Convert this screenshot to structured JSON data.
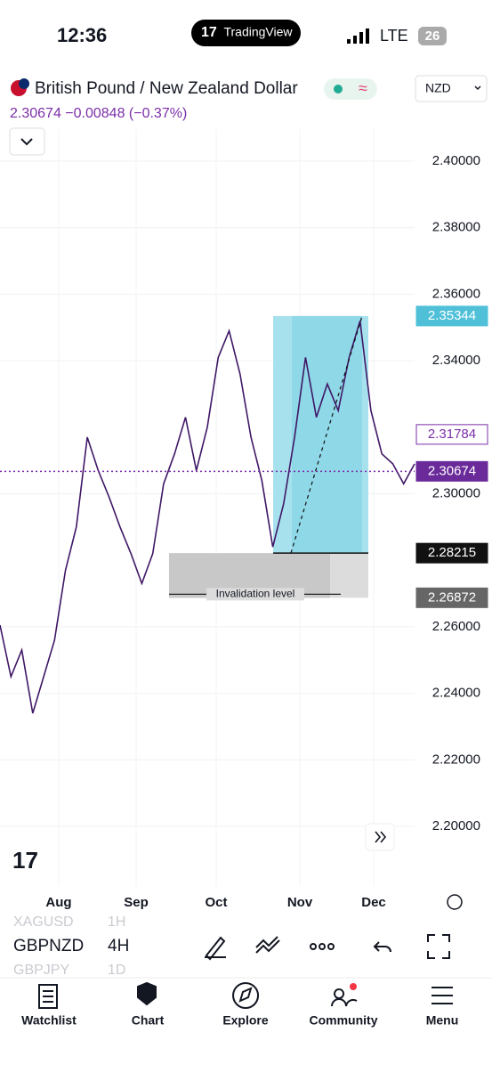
{
  "status_bar": {
    "time": "12:36",
    "app": "TradingView",
    "network": "LTE",
    "battery": "26"
  },
  "header": {
    "title": "British Pound / New Zealand Dollar",
    "currency": "NZD",
    "quote": "2.30674 −0.00848 (−0.37%)"
  },
  "chart_data": {
    "type": "line",
    "color": "#3f1766",
    "values": [
      2.2605,
      2.245,
      2.253,
      2.234,
      2.245,
      2.256,
      2.277,
      2.29,
      2.317,
      2.307,
      2.299,
      2.29,
      2.282,
      2.273,
      2.282,
      2.303,
      2.312,
      2.323,
      2.307,
      2.32,
      2.341,
      2.349,
      2.336,
      2.317,
      2.304,
      2.284,
      2.297,
      2.317,
      2.341,
      2.323,
      2.333,
      2.325,
      2.341,
      2.352,
      2.325,
      2.312,
      2.309,
      2.303,
      2.309
    ],
    "ylim": [
      2.18206,
      2.40964
    ],
    "yticks": [
      {
        "value": 2.2,
        "label": "2.20000"
      },
      {
        "value": 2.22,
        "label": "2.22000"
      },
      {
        "value": 2.24,
        "label": "2.24000"
      },
      {
        "value": 2.26,
        "label": "2.26000"
      },
      {
        "value": 2.3,
        "label": "2.30000"
      },
      {
        "value": 2.34,
        "label": "2.34000"
      },
      {
        "value": 2.36,
        "label": "2.36000"
      },
      {
        "value": 2.38,
        "label": "2.38000"
      },
      {
        "value": 2.4,
        "label": "2.40000"
      }
    ],
    "grid": true,
    "x_labels": [
      "Aug",
      "Sep",
      "Oct",
      "Nov",
      "Dec"
    ],
    "price_labels": [
      2.35344,
      2.31784,
      2.30674,
      2.28215,
      2.26872
    ],
    "price_label_colors": [
      "#4fc0d8",
      "#ffffff",
      "#6a2a9a",
      "#111111",
      "#666666"
    ],
    "annotation": "Invalidation level"
  },
  "symbols": [
    {
      "symbol": "XAGUSD",
      "interval": "1H"
    },
    {
      "symbol": "GBPNZD",
      "interval": "4H"
    },
    {
      "symbol": "GBPJPY",
      "interval": "1D"
    }
  ],
  "tabs": [
    "Watchlist",
    "Chart",
    "Explore",
    "Community",
    "Menu"
  ]
}
